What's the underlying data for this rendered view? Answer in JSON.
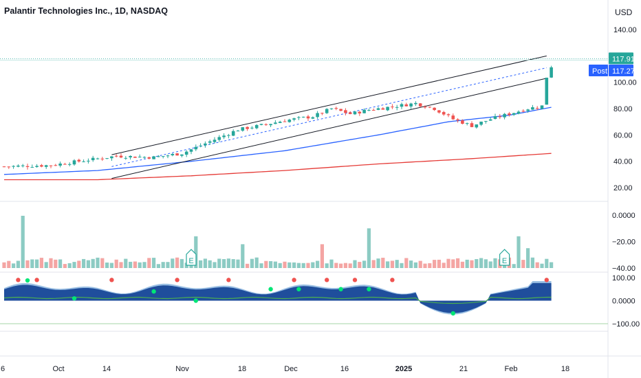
{
  "header": {
    "symbol": "Palantir Technologies Inc., 1D, NASDAQ",
    "currency": "USD"
  },
  "price_axis": {
    "labels": [
      "140.00",
      "100.00",
      "80.00",
      "60.00",
      "40.00",
      "20.00"
    ],
    "values": [
      140,
      100,
      80,
      60,
      40,
      20
    ],
    "current_price": "117.91",
    "post_label": "Post",
    "post_price": "117.27",
    "current_color": "#26a69a",
    "post_color": "#2962ff"
  },
  "volume_axis": {
    "labels": [
      "0.0000",
      "−20.00",
      "−40.00"
    ]
  },
  "oscillator_axis": {
    "labels": [
      "100.00",
      "0.0000",
      "−100.00"
    ]
  },
  "time_axis": {
    "labels": [
      "6",
      "Oct",
      "14",
      "Nov",
      "18",
      "Dec",
      "16",
      "2025",
      "21",
      "Feb",
      "18"
    ],
    "bold": [
      false,
      false,
      false,
      false,
      false,
      false,
      false,
      true,
      false,
      false,
      false
    ]
  },
  "earnings_markers": [
    {
      "label": "E",
      "index": 40
    },
    {
      "label": "E",
      "index": 107
    }
  ],
  "chart_data": [
    {
      "type": "candlestick",
      "title": "Palantir Technologies Inc., 1D, NASDAQ",
      "ylim": [
        10,
        150
      ],
      "up_color": "#26a69a",
      "down_color": "#ef5350",
      "moving_averages": [
        {
          "color": "#2962ff",
          "points": [
            [
              0,
              30
            ],
            [
              20,
              33
            ],
            [
              40,
              40
            ],
            [
              60,
              48
            ],
            [
              80,
              60
            ],
            [
              95,
              70
            ],
            [
              108,
              75
            ],
            [
              117,
              81
            ]
          ]
        },
        {
          "color": "#e53935",
          "points": [
            [
              0,
              26
            ],
            [
              20,
              26
            ],
            [
              40,
              29
            ],
            [
              60,
              33
            ],
            [
              80,
              38
            ],
            [
              100,
              42
            ],
            [
              117,
              46
            ]
          ]
        }
      ],
      "channel_lines": [
        {
          "style": "solid",
          "points": [
            [
              23,
              45
            ],
            [
              116,
              120
            ]
          ]
        },
        {
          "style": "dashed",
          "points": [
            [
              23,
              36
            ],
            [
              116,
              111
            ]
          ]
        },
        {
          "style": "solid",
          "points": [
            [
              23,
              27
            ],
            [
              116,
              103
            ]
          ]
        }
      ],
      "markers": {
        "last_price": 117.91,
        "post_price": 117.27
      }
    },
    {
      "type": "bar",
      "name": "volume",
      "ylim": [
        -45,
        5
      ],
      "up_color": "#8ccbc3",
      "down_color": "#f4a5a3"
    },
    {
      "type": "area",
      "name": "oscillator",
      "ylim": [
        -135,
        135
      ],
      "fill_color": "#1f4e9c",
      "line_color": "#4caf50"
    }
  ]
}
